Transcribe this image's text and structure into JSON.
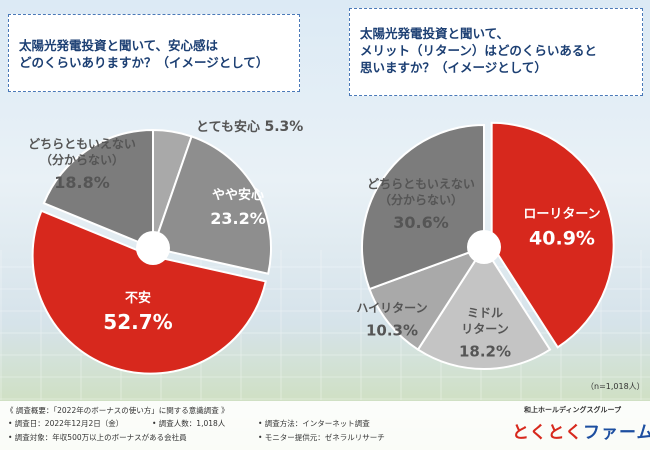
{
  "questions": {
    "left": [
      "太陽光発電投資と聞いて、安心感は",
      "どのくらいありますか？（イメージとして）"
    ],
    "right": [
      "太陽光発電投資と聞いて、",
      "メリット（リターン）はどのくらいあると",
      "思いますか？（イメージとして）"
    ]
  },
  "colors": {
    "red": "#d7281d",
    "grey_dark": "#7c7c7c",
    "grey_mid": "#8e8e8e",
    "grey_light": "#a9a9a9",
    "grey_pale": "#c4c4c4"
  },
  "chart_data": [
    {
      "type": "pie",
      "title": "太陽光発電投資と聞いて、安心感はどのくらいありますか？（イメージとして）",
      "categories": [
        "とても安心",
        "やや安心",
        "不安",
        "どちらともいえない（分からない）"
      ],
      "values": [
        5.3,
        23.2,
        52.7,
        18.8
      ],
      "value_labels": [
        "5.3%",
        "23.2%",
        "52.7%",
        "18.8%"
      ],
      "label_lines": [
        [
          "とても安心"
        ],
        [
          "やや安心"
        ],
        [
          "不安"
        ],
        [
          "どちらともいえない",
          "（分からない）"
        ]
      ]
    },
    {
      "type": "pie",
      "title": "太陽光発電投資と聞いて、メリット（リターン）はどのくらいあると思いますか？（イメージとして）",
      "categories": [
        "ローリターン",
        "ミドルリターン",
        "ハイリターン",
        "どちらともいえない（分からない）"
      ],
      "values": [
        40.9,
        18.2,
        10.3,
        30.6
      ],
      "value_labels": [
        "40.9%",
        "18.2%",
        "10.3%",
        "30.6%"
      ],
      "label_lines": [
        [
          "ローリターン"
        ],
        [
          "ミドル",
          "リターン"
        ],
        [
          "ハイリターン"
        ],
        [
          "どちらともいえない",
          "（分からない）"
        ]
      ]
    }
  ],
  "sample_note": "（n=1,018人）",
  "footer": {
    "summary": "《 調査概要：「2022年のボーナスの使い方」に関する意識調査 》",
    "date": "• 調査日：2022年12月2日（金）",
    "count": "• 調査人数：1,018人",
    "method": "• 調査方法：インターネット調査",
    "target": "• 調査対象：年収500万以上のボーナスがある会社員",
    "provider": "• モニター提供元：ゼネラルリサーチ"
  },
  "logo": {
    "sub": "和上ホールディングスグループ",
    "part1": "とくとく",
    "part2": "ファーム"
  }
}
